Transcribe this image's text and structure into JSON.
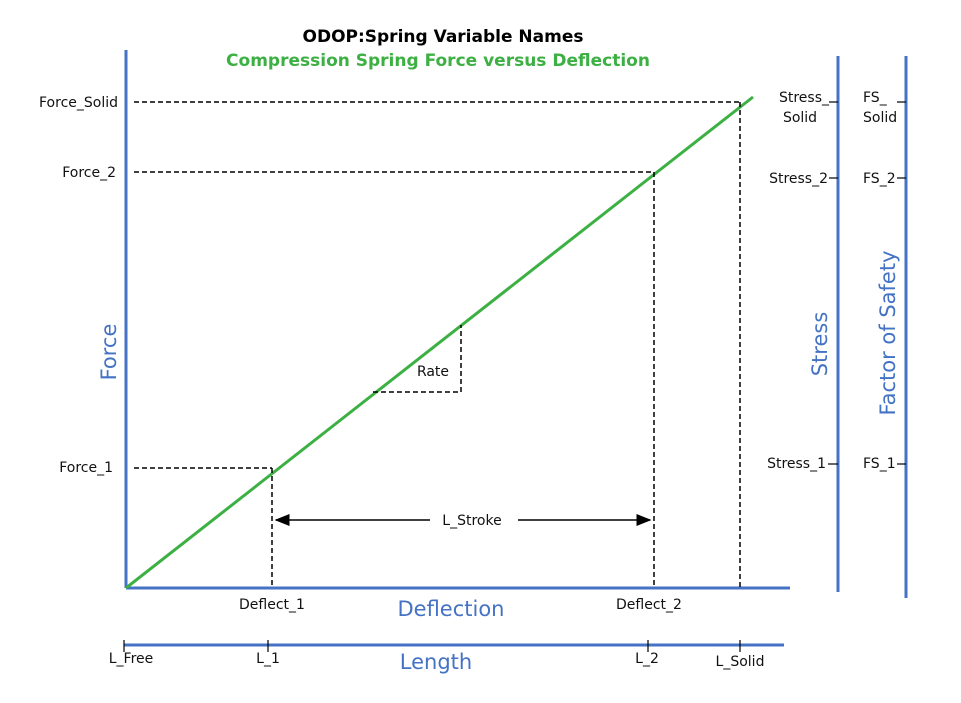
{
  "title": "ODOP:Spring Variable Names",
  "subtitle": "Compression Spring  Force versus Deflection",
  "colors": {
    "axis": "#4472c4",
    "line": "#3cb043",
    "text": "#111111",
    "title": "#000000"
  },
  "axes": {
    "force": "Force",
    "deflection": "Deflection",
    "length": "Length",
    "stress": "Stress",
    "factor_of_safety": "Factor of Safety"
  },
  "force_labels": {
    "solid": "Force_Solid",
    "f2": "Force_2",
    "f1": "Force_1"
  },
  "deflection_labels": {
    "d1": "Deflect_1",
    "d2": "Deflect_2"
  },
  "length_labels": {
    "free": "L_Free",
    "l1": "L_1",
    "l2": "L_2",
    "solid": "L_Solid"
  },
  "stress_labels": {
    "solid_line1": "Stress_",
    "solid_line2": "Solid",
    "s2": "Stress_2",
    "s1": "Stress_1"
  },
  "fs_labels": {
    "solid_line1": "FS_",
    "solid_line2": "Solid",
    "f2": "FS_2",
    "f1": "FS_1"
  },
  "annotations": {
    "rate": "Rate",
    "stroke": "L_Stroke"
  }
}
